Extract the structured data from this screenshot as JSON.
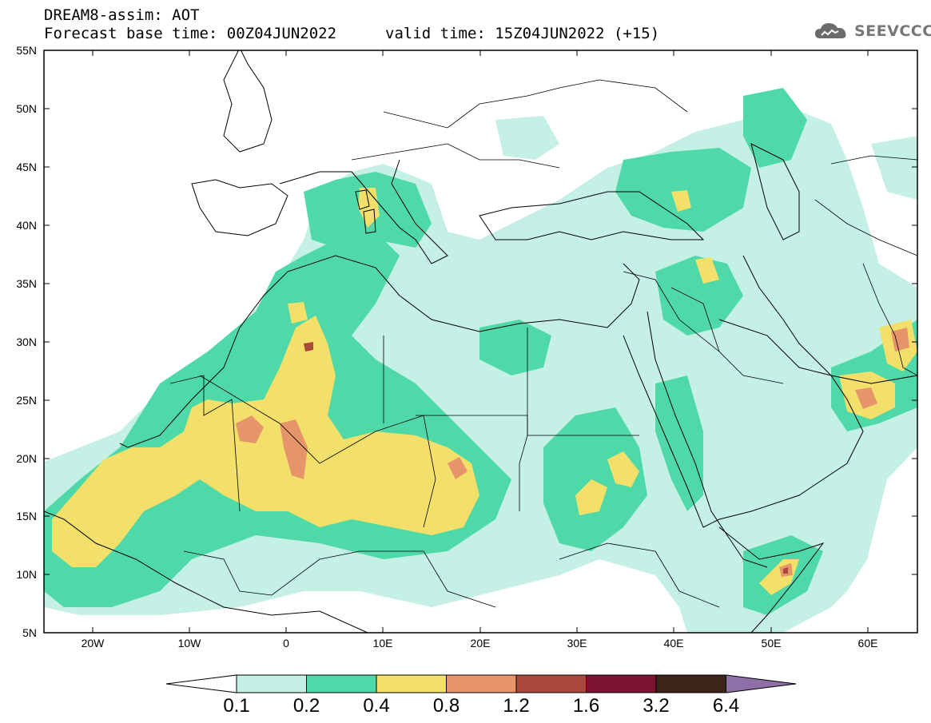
{
  "header": {
    "title": "DREAM8-assim: AOT",
    "base_time": "Forecast base time: 00Z04JUN2022",
    "valid_time": "valid time: 15Z04JUN2022 (+15)"
  },
  "logo": {
    "text": "SEEVCCC",
    "icon": "cloud-icon"
  },
  "map": {
    "lon_range": [
      -25,
      65
    ],
    "lat_range": [
      5,
      55
    ],
    "lat_labels": [
      "55N",
      "50N",
      "45N",
      "40N",
      "35N",
      "30N",
      "25N",
      "20N",
      "15N",
      "10N",
      "5N"
    ],
    "lon_labels": [
      "20W",
      "10W",
      "0",
      "10E",
      "20E",
      "30E",
      "40E",
      "50E",
      "60E"
    ]
  },
  "colorbar": {
    "thresholds": [
      "0.1",
      "0.2",
      "0.4",
      "0.8",
      "1.2",
      "1.6",
      "3.2",
      "6.4"
    ],
    "colors": [
      "#ffffff",
      "#c4f0e6",
      "#4fd9a8",
      "#f2e06a",
      "#e6946a",
      "#a9493c",
      "#7a1432",
      "#3c2418",
      "#8f6fa8"
    ]
  }
}
